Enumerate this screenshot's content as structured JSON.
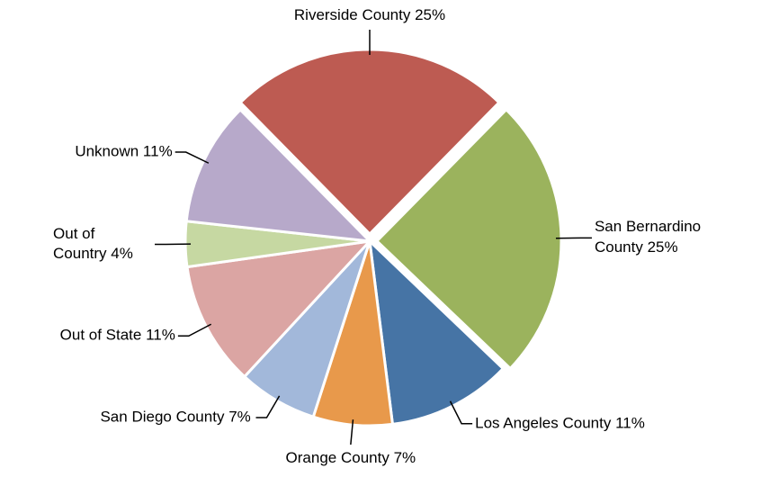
{
  "chart_data": {
    "type": "pie",
    "categories": [
      "Riverside County",
      "San Bernardino County",
      "Los Angeles County",
      "Orange County",
      "San Diego County",
      "Out of State",
      "Out of Country",
      "Unknown"
    ],
    "values": [
      25,
      25,
      11,
      7,
      7,
      11,
      4,
      11
    ],
    "value_labels": [
      "25%",
      "25%",
      "11%",
      "7%",
      "7%",
      "11%",
      "4%",
      "11%"
    ],
    "colors": [
      "#bd5b52",
      "#9bb35d",
      "#4674a5",
      "#e8994b",
      "#a2b8da",
      "#dba5a3",
      "#c6d8a2",
      "#b7a9ca"
    ],
    "exploded": [
      "Riverside County",
      "San Bernardino County"
    ]
  }
}
